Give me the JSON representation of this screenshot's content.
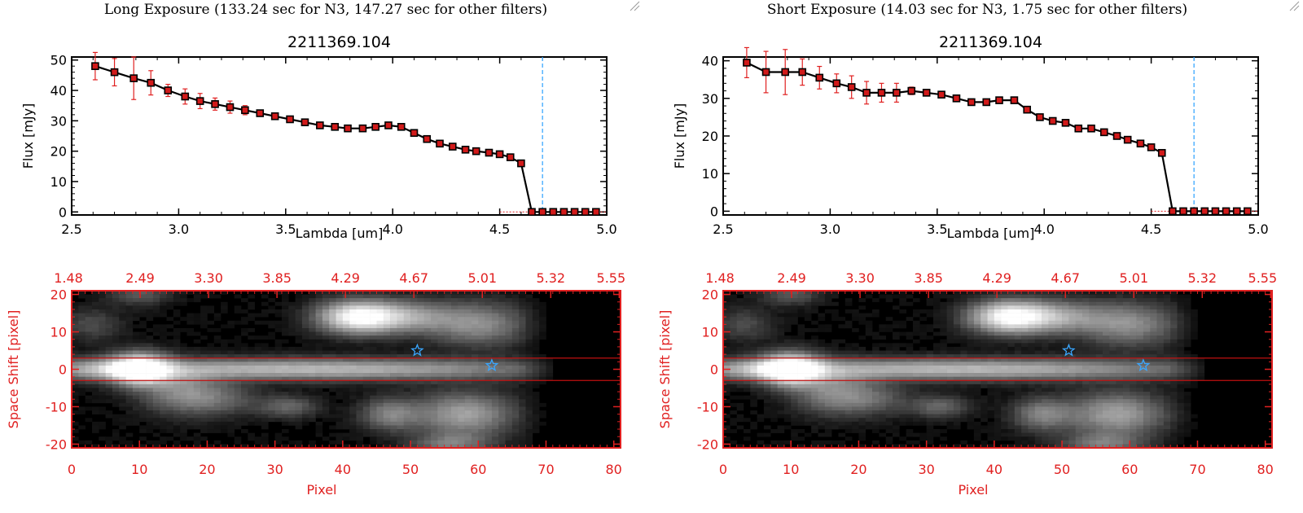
{
  "panels": [
    {
      "caption": "Long Exposure (133.24 sec for N3, 147.27 sec for other filters)",
      "chart_data": [
        {
          "type": "line",
          "title": "2211369.104",
          "xlabel": "Lambda [um]",
          "ylabel": "Flux [mJy]",
          "xlim": [
            2.5,
            5.0
          ],
          "ylim": [
            -1,
            51
          ],
          "xticks": [
            "2.5",
            "3.0",
            "3.5",
            "4.0",
            "4.5",
            "5.0"
          ],
          "yticks": [
            "0",
            "10",
            "20",
            "30",
            "40",
            "50"
          ],
          "vline_x": 4.7,
          "colors": {
            "line": "#000000",
            "marker": "#d11a1a",
            "errorbar": "#e02020",
            "vline": "#3aa7ff"
          },
          "x": [
            2.61,
            2.7,
            2.79,
            2.87,
            2.95,
            3.03,
            3.1,
            3.17,
            3.24,
            3.31,
            3.38,
            3.45,
            3.52,
            3.59,
            3.66,
            3.73,
            3.79,
            3.86,
            3.92,
            3.98,
            4.04,
            4.1,
            4.16,
            4.22,
            4.28,
            4.34,
            4.39,
            4.45,
            4.5,
            4.55,
            4.6,
            4.65,
            4.7,
            4.75,
            4.8,
            4.85,
            4.9,
            4.95
          ],
          "y": [
            48,
            46,
            44,
            42.5,
            40,
            38,
            36.5,
            35.5,
            34.5,
            33.5,
            32.5,
            31.5,
            30.5,
            29.5,
            28.5,
            28,
            27.5,
            27.5,
            28,
            28.5,
            28,
            26,
            24,
            22.5,
            21.5,
            20.5,
            20,
            19.5,
            19,
            18,
            16,
            0,
            0,
            0,
            0,
            0,
            0,
            0
          ],
          "yerr": [
            4.5,
            4.5,
            7,
            4,
            2,
            2.5,
            2.5,
            2,
            2,
            1.5,
            1,
            0.7,
            0.5,
            0.5,
            0.5,
            0.4,
            0.4,
            0.4,
            0.4,
            0.4,
            0.4,
            0.4,
            0.4,
            0.4,
            0.4,
            0.4,
            0.4,
            0.4,
            0.4,
            0.4,
            0.4,
            0,
            0,
            0,
            0,
            0,
            0,
            0
          ]
        },
        {
          "type": "heatmap",
          "ylabel": "Space Shift [pixel]",
          "xlabel": "Pixel",
          "xlim": [
            0,
            81
          ],
          "ylim": [
            -21,
            21
          ],
          "xticks": [
            "0",
            "10",
            "20",
            "30",
            "40",
            "50",
            "60",
            "70",
            "80"
          ],
          "yticks": [
            "-20",
            "-10",
            "0",
            "10",
            "20"
          ],
          "top_ticks": [
            "1.48",
            "2.49",
            "3.30",
            "3.85",
            "4.29",
            "4.67",
            "5.01",
            "5.32",
            "5.55"
          ],
          "hlines": [
            3,
            -3
          ],
          "stars": [
            [
              51,
              5
            ],
            [
              62,
              1
            ]
          ],
          "colors": {
            "axis": "#e02020",
            "star": "#3aa7ff",
            "hline": "#c01010"
          }
        }
      ]
    },
    {
      "caption": "Short Exposure (14.03 sec for N3, 1.75 sec for other filters)",
      "chart_data": [
        {
          "type": "line",
          "title": "2211369.104",
          "xlabel": "Lambda [um]",
          "ylabel": "Flux [mJy]",
          "xlim": [
            2.5,
            5.0
          ],
          "ylim": [
            -1,
            41
          ],
          "xticks": [
            "2.5",
            "3.0",
            "3.5",
            "4.0",
            "4.5",
            "5.0"
          ],
          "yticks": [
            "0",
            "10",
            "20",
            "30",
            "40"
          ],
          "vline_x": 4.7,
          "colors": {
            "line": "#000000",
            "marker": "#d11a1a",
            "errorbar": "#e02020",
            "vline": "#3aa7ff"
          },
          "x": [
            2.61,
            2.7,
            2.79,
            2.87,
            2.95,
            3.03,
            3.1,
            3.17,
            3.24,
            3.31,
            3.38,
            3.45,
            3.52,
            3.59,
            3.66,
            3.73,
            3.79,
            3.86,
            3.92,
            3.98,
            4.04,
            4.1,
            4.16,
            4.22,
            4.28,
            4.34,
            4.39,
            4.45,
            4.5,
            4.55,
            4.6,
            4.65,
            4.7,
            4.75,
            4.8,
            4.85,
            4.9,
            4.95
          ],
          "y": [
            39.5,
            37,
            37,
            37,
            35.5,
            34,
            33,
            31.5,
            31.5,
            31.5,
            32,
            31.5,
            31,
            30,
            29,
            29,
            29.5,
            29.5,
            27,
            25,
            24,
            23.5,
            22,
            22,
            21,
            20,
            19,
            18,
            17,
            15.5,
            0,
            0,
            0,
            0,
            0,
            0,
            0,
            0
          ],
          "yerr": [
            4,
            5.5,
            6,
            3.5,
            3,
            2.5,
            3,
            3,
            2.5,
            2.5,
            1,
            0.7,
            0.5,
            0.5,
            0.5,
            0.4,
            0.4,
            0.4,
            0.4,
            0.4,
            0.4,
            0.4,
            0.4,
            0.4,
            0.4,
            0.4,
            0.4,
            0.4,
            0.4,
            0.4,
            0,
            0,
            0,
            0,
            0,
            0,
            0,
            0
          ]
        },
        {
          "type": "heatmap",
          "ylabel": "Space Shift [pixel]",
          "xlabel": "Pixel",
          "xlim": [
            0,
            81
          ],
          "ylim": [
            -21,
            21
          ],
          "xticks": [
            "0",
            "10",
            "20",
            "30",
            "40",
            "50",
            "60",
            "70",
            "80"
          ],
          "yticks": [
            "-20",
            "-10",
            "0",
            "10",
            "20"
          ],
          "top_ticks": [
            "1.48",
            "2.49",
            "3.30",
            "3.85",
            "4.29",
            "4.67",
            "5.01",
            "5.32",
            "5.55"
          ],
          "hlines": [
            3,
            -3
          ],
          "stars": [
            [
              51,
              5
            ],
            [
              62,
              1
            ]
          ],
          "colors": {
            "axis": "#e02020",
            "star": "#3aa7ff",
            "hline": "#c01010"
          }
        }
      ]
    }
  ],
  "image_blobs": [
    {
      "x": 10,
      "y": 0,
      "amp": 1.0,
      "sx": 3,
      "sy": 3
    },
    {
      "x": 35,
      "y": 0,
      "amp": 0.65,
      "sx": 25,
      "sy": 2
    },
    {
      "x": 4,
      "y": 0,
      "amp": 0.35,
      "sx": 5,
      "sy": 2
    },
    {
      "x": 16,
      "y": -6,
      "amp": 0.4,
      "sx": 4,
      "sy": 4
    },
    {
      "x": 42,
      "y": 14,
      "amp": 0.9,
      "sx": 4,
      "sy": 3
    },
    {
      "x": 49,
      "y": 14,
      "amp": 0.5,
      "sx": 5,
      "sy": 3
    },
    {
      "x": 60,
      "y": 12,
      "amp": 0.45,
      "sx": 5,
      "sy": 4
    },
    {
      "x": 58,
      "y": -12,
      "amp": 0.55,
      "sx": 5,
      "sy": 4
    },
    {
      "x": 47,
      "y": -12,
      "amp": 0.4,
      "sx": 3,
      "sy": 3
    },
    {
      "x": 32,
      "y": -10,
      "amp": 0.3,
      "sx": 3,
      "sy": 2
    },
    {
      "x": 10,
      "y": 20,
      "amp": 0.25,
      "sx": 3,
      "sy": 2
    },
    {
      "x": 22,
      "y": -8,
      "amp": 0.25,
      "sx": 4,
      "sy": 3
    },
    {
      "x": 56,
      "y": -20,
      "amp": 0.35,
      "sx": 4,
      "sy": 2
    },
    {
      "x": 3,
      "y": 12,
      "amp": 0.2,
      "sx": 3,
      "sy": 3
    }
  ]
}
